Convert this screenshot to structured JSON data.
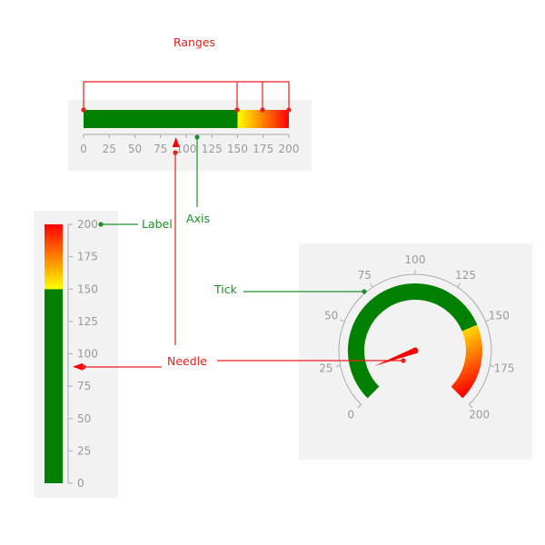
{
  "colors": {
    "panel": "#f2f2f2",
    "green": "#008000",
    "yellow": "#ffff00",
    "red": "#ff0000",
    "tick": "#aaaaaa",
    "label": "#999999",
    "callout_red": "#e8201c",
    "callout_green": "#1f8f2a"
  },
  "callouts": {
    "ranges": "Ranges",
    "axis": "Axis",
    "label": "Label",
    "tick": "Tick",
    "needle": "Needle"
  },
  "linear_horizontal": {
    "min": 0,
    "max": 200,
    "ticks": [
      "0",
      "25",
      "50",
      "75",
      "100",
      "125",
      "150",
      "175",
      "200"
    ],
    "ranges": [
      {
        "from": 0,
        "to": 150,
        "color": "green"
      },
      {
        "from": 150,
        "to": 200,
        "color": "yellow-to-red"
      }
    ],
    "range_markers": [
      0,
      150,
      175,
      200
    ],
    "needle_value": 90
  },
  "linear_vertical": {
    "min": 0,
    "max": 200,
    "ticks": [
      "0",
      "25",
      "50",
      "75",
      "100",
      "125",
      "150",
      "175",
      "200"
    ],
    "ranges": [
      {
        "from": 0,
        "to": 150,
        "color": "green"
      },
      {
        "from": 150,
        "to": 200,
        "color": "yellow-to-red"
      }
    ],
    "needle_value": 90
  },
  "radial": {
    "min": 0,
    "max": 200,
    "start_angle_deg": 225,
    "sweep_deg": 270,
    "ticks": [
      "0",
      "25",
      "50",
      "75",
      "100",
      "125",
      "150",
      "175",
      "200"
    ],
    "ranges": [
      {
        "from": 0,
        "to": 150,
        "color": "green"
      },
      {
        "from": 150,
        "to": 200,
        "color": "yellow-to-red"
      }
    ],
    "needle_value": 18
  }
}
